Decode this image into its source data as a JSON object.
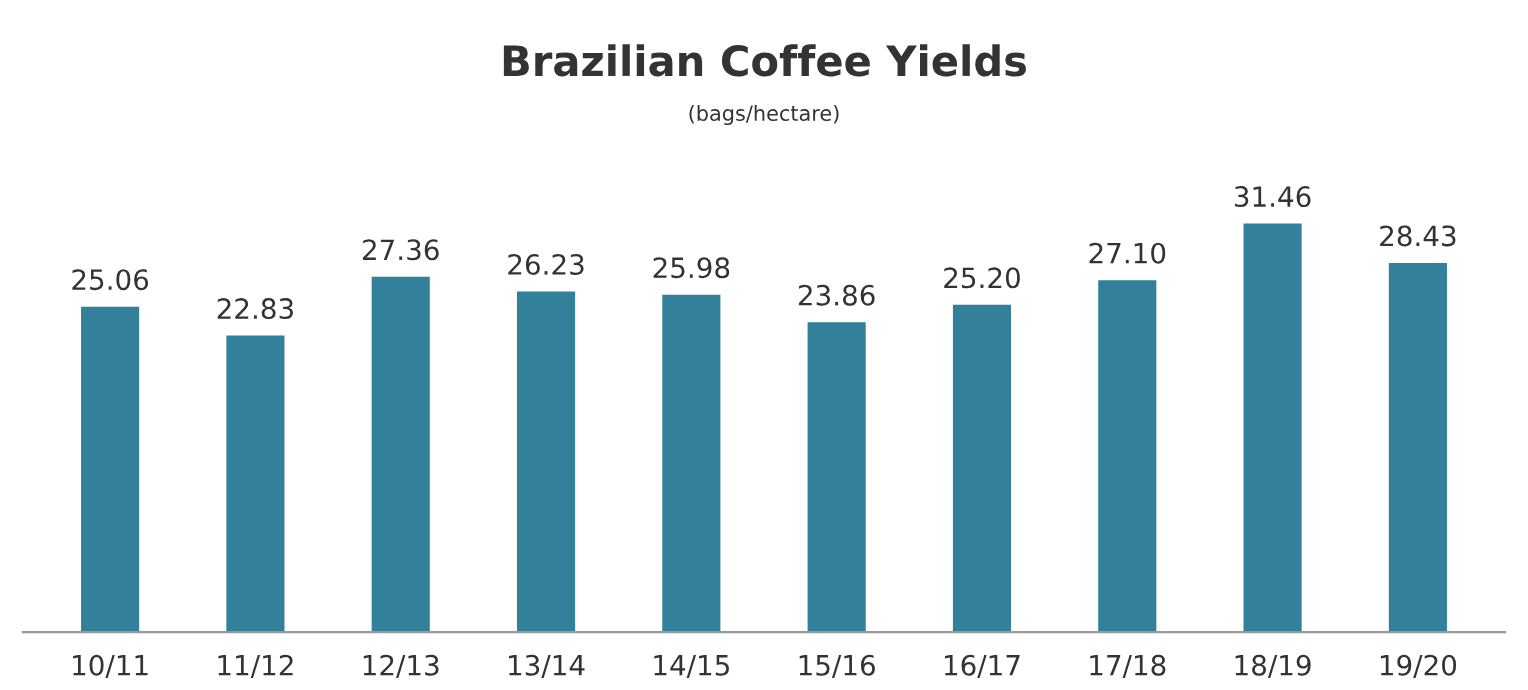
{
  "chart_data": {
    "type": "bar",
    "title": "Brazilian Coffee Yields",
    "subtitle": "(bags/hectare)",
    "categories": [
      "10/11",
      "11/12",
      "12/13",
      "13/14",
      "14/15",
      "15/16",
      "16/17",
      "17/18",
      "18/19",
      "19/20"
    ],
    "values": [
      25.06,
      22.83,
      27.36,
      26.23,
      25.98,
      23.86,
      25.2,
      27.1,
      31.46,
      28.43
    ],
    "value_labels": [
      "25.06",
      "22.83",
      "27.36",
      "26.23",
      "25.98",
      "23.86",
      "25.20",
      "27.10",
      "31.46",
      "28.43"
    ],
    "color": "#32809a",
    "grid": false,
    "legend": false
  }
}
